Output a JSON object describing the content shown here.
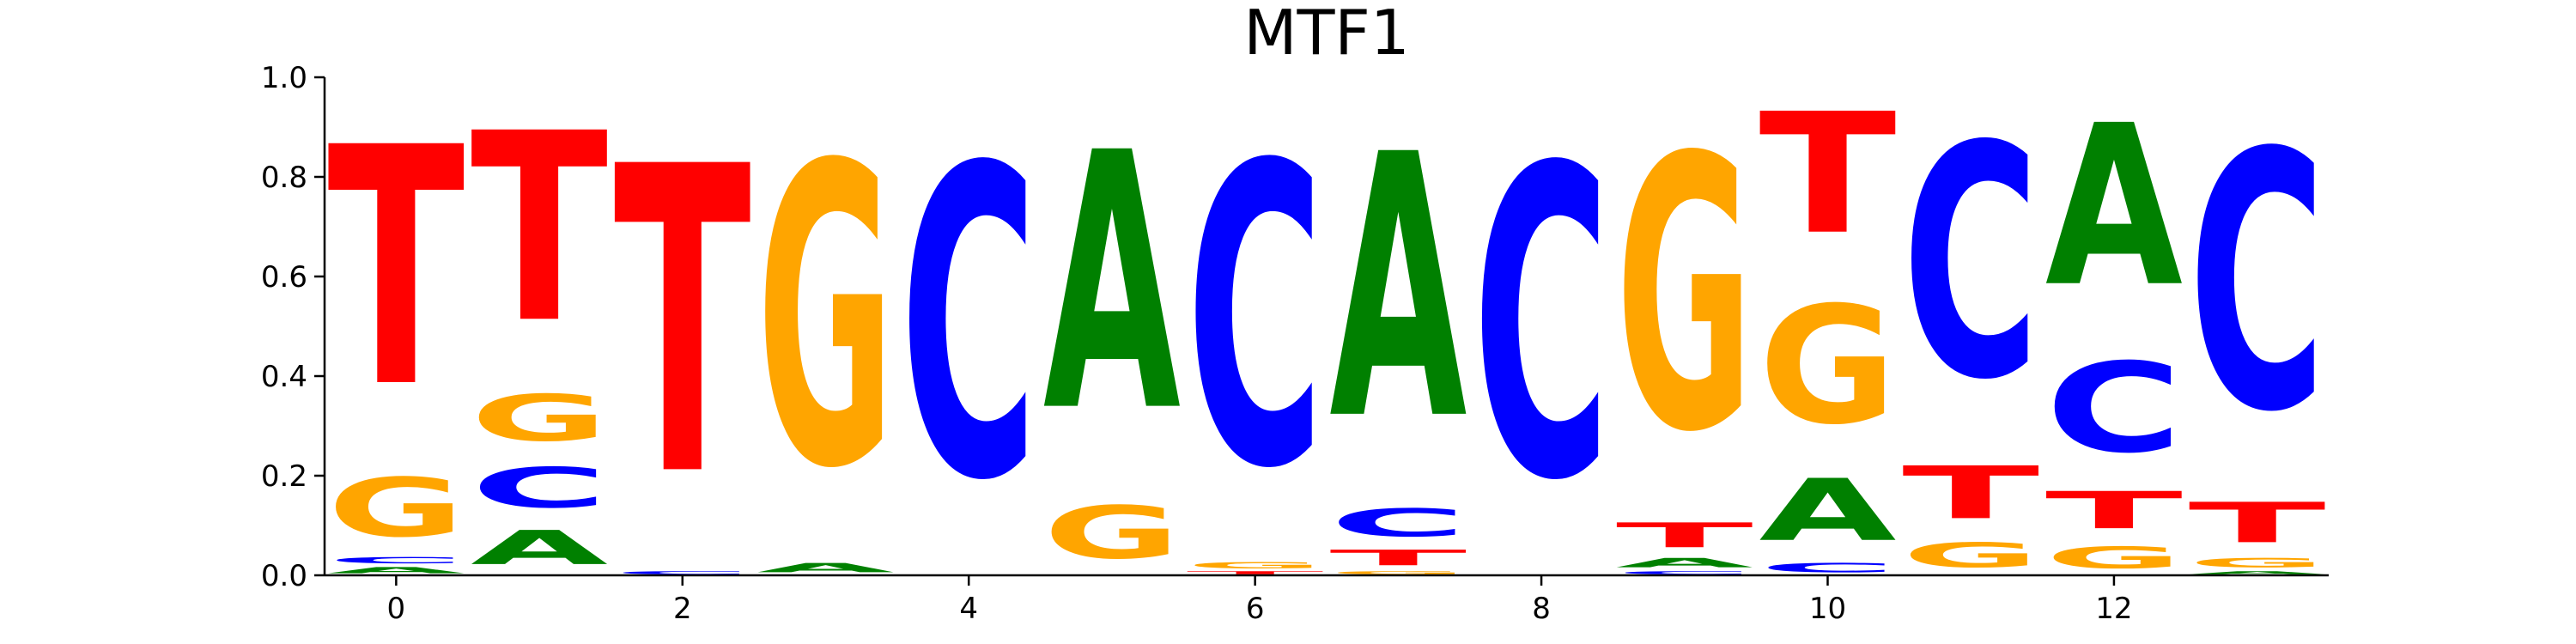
{
  "chart_data": {
    "type": "sequence-logo",
    "title": "MTF1",
    "xlabel": "",
    "ylabel": "",
    "ylim": [
      0,
      1
    ],
    "xlim": [
      -0.5,
      13.5
    ],
    "yticks": [
      "0.0",
      "0.2",
      "0.4",
      "0.6",
      "0.8",
      "1.0"
    ],
    "xticks": [
      "0",
      "2",
      "4",
      "6",
      "8",
      "10",
      "12"
    ],
    "colors": {
      "A": "#008000",
      "C": "#0000ff",
      "G": "#ffa500",
      "T": "#ff0000"
    },
    "positions": [
      {
        "position": 0,
        "A": 0.02,
        "C": 0.02,
        "G": 0.19,
        "T": 0.77
      },
      {
        "position": 1,
        "A": 0.11,
        "C": 0.13,
        "G": 0.15,
        "T": 0.61
      },
      {
        "position": 2,
        "A": 0.0,
        "C": 0.01,
        "G": 0.0,
        "T": 0.99
      },
      {
        "position": 3,
        "A": 0.03,
        "C": 0.0,
        "G": 0.97,
        "T": 0.0
      },
      {
        "position": 4,
        "A": 0.0,
        "C": 1.0,
        "G": 0.0,
        "T": 0.0
      },
      {
        "position": 5,
        "A": 0.83,
        "C": 0.0,
        "G": 0.17,
        "T": 0.0
      },
      {
        "position": 6,
        "A": 0.0,
        "C": 0.97,
        "G": 0.02,
        "T": 0.01
      },
      {
        "position": 7,
        "A": 0.85,
        "C": 0.09,
        "G": 0.01,
        "T": 0.05
      },
      {
        "position": 8,
        "A": 0.0,
        "C": 1.0,
        "G": 0.0,
        "T": 0.0
      },
      {
        "position": 9,
        "A": 0.03,
        "C": 0.01,
        "G": 0.88,
        "T": 0.08
      },
      {
        "position": 10,
        "A": 0.2,
        "C": 0.03,
        "G": 0.38,
        "T": 0.39
      },
      {
        "position": 11,
        "A": 0.0,
        "C": 0.75,
        "G": 0.08,
        "T": 0.17
      },
      {
        "position": 12,
        "A": 0.52,
        "C": 0.29,
        "G": 0.07,
        "T": 0.12
      },
      {
        "position": 13,
        "A": 0.01,
        "C": 0.83,
        "G": 0.03,
        "T": 0.13
      }
    ]
  }
}
